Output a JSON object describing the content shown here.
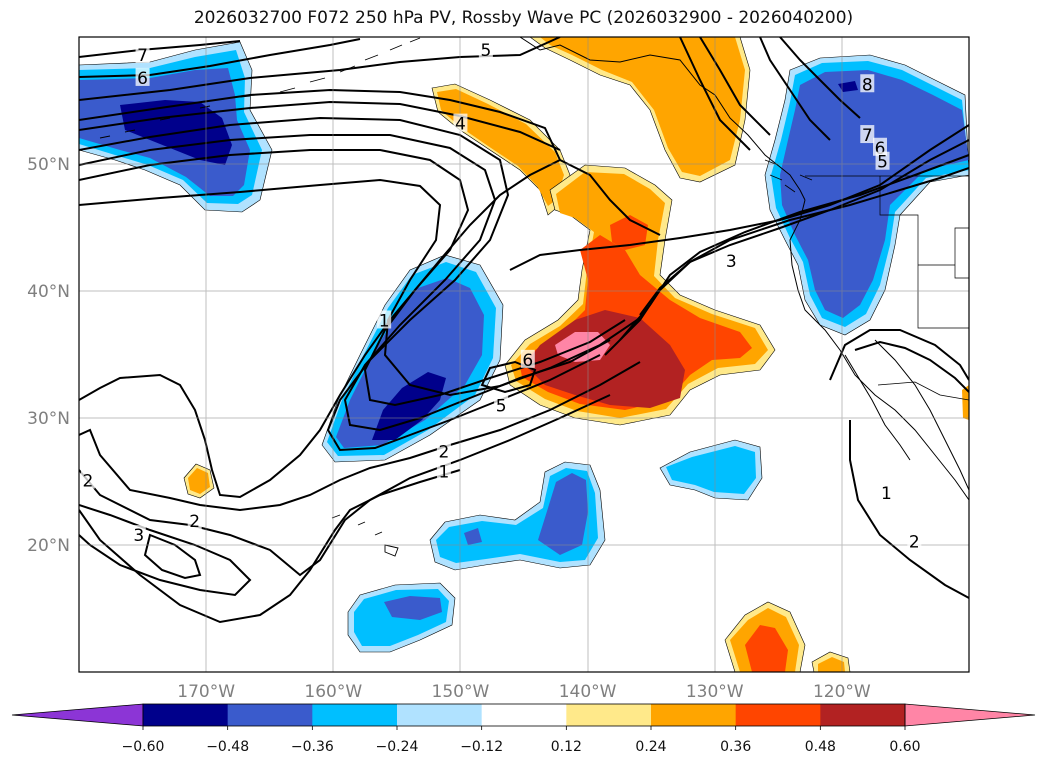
{
  "title": "2026032700 F072 250 hPa PV, Rossby Wave PC (2026032900 - 2026040200)",
  "map": {
    "extent": {
      "lon_min": -180,
      "lon_max": -110,
      "lat_min": 10,
      "lat_max": 60
    },
    "lon_ticks": [
      {
        "lon": -170,
        "label": "170°W"
      },
      {
        "lon": -160,
        "label": "160°W"
      },
      {
        "lon": -150,
        "label": "150°W"
      },
      {
        "lon": -140,
        "label": "140°W"
      },
      {
        "lon": -130,
        "label": "130°W"
      },
      {
        "lon": -120,
        "label": "120°W"
      }
    ],
    "lat_ticks": [
      {
        "lat": 50,
        "label": "50°N"
      },
      {
        "lat": 40,
        "label": "40°N"
      },
      {
        "lat": 30,
        "label": "30°N"
      },
      {
        "lat": 20,
        "label": "20°N"
      }
    ],
    "contour_labels": [
      {
        "text": "7",
        "lon": -175,
        "lat": 58.5
      },
      {
        "text": "6",
        "lon": -175,
        "lat": 56.7
      },
      {
        "text": "5",
        "lon": -148,
        "lat": 58.9
      },
      {
        "text": "4",
        "lon": -150,
        "lat": 53.1
      },
      {
        "text": "8",
        "lon": -118,
        "lat": 56.2
      },
      {
        "text": "7",
        "lon": -118,
        "lat": 52.2
      },
      {
        "text": "6",
        "lon": -117,
        "lat": 51.2
      },
      {
        "text": "5",
        "lon": -116.8,
        "lat": 50.1
      },
      {
        "text": "3",
        "lon": -128.7,
        "lat": 42.3
      },
      {
        "text": "1",
        "lon": -156,
        "lat": 37.6
      },
      {
        "text": "6",
        "lon": -144.7,
        "lat": 34.5
      },
      {
        "text": "5",
        "lon": -146.8,
        "lat": 30.9
      },
      {
        "text": "2",
        "lon": -151.3,
        "lat": 27.3
      },
      {
        "text": "1",
        "lon": -151.3,
        "lat": 25.7
      },
      {
        "text": "2",
        "lon": -179.3,
        "lat": 25.0
      },
      {
        "text": "2",
        "lon": -170.9,
        "lat": 21.8
      },
      {
        "text": "3",
        "lon": -175.3,
        "lat": 20.7
      },
      {
        "text": "1",
        "lon": -116.5,
        "lat": 24.0
      },
      {
        "text": "2",
        "lon": -114.3,
        "lat": 20.2
      }
    ]
  },
  "colorbar": {
    "boundaries": [
      -0.72,
      -0.6,
      -0.48,
      -0.36,
      -0.24,
      -0.12,
      0.12,
      0.24,
      0.36,
      0.48,
      0.6,
      0.72
    ],
    "colors": [
      "#8c35d6",
      "#00008b",
      "#3a5bcc",
      "#00bfff",
      "#b0e2ff",
      "#ffffff",
      "#ffe98a",
      "#ffa500",
      "#ff4500",
      "#b22222",
      "#ff85a6"
    ],
    "tick_labels": [
      "−0.60",
      "−0.48",
      "−0.36",
      "−0.24",
      "−0.12",
      "0.12",
      "0.24",
      "0.36",
      "0.48",
      "0.60"
    ]
  },
  "legend": {
    "shading": "Rossby Wave PC",
    "contours": "250 hPa PV"
  }
}
